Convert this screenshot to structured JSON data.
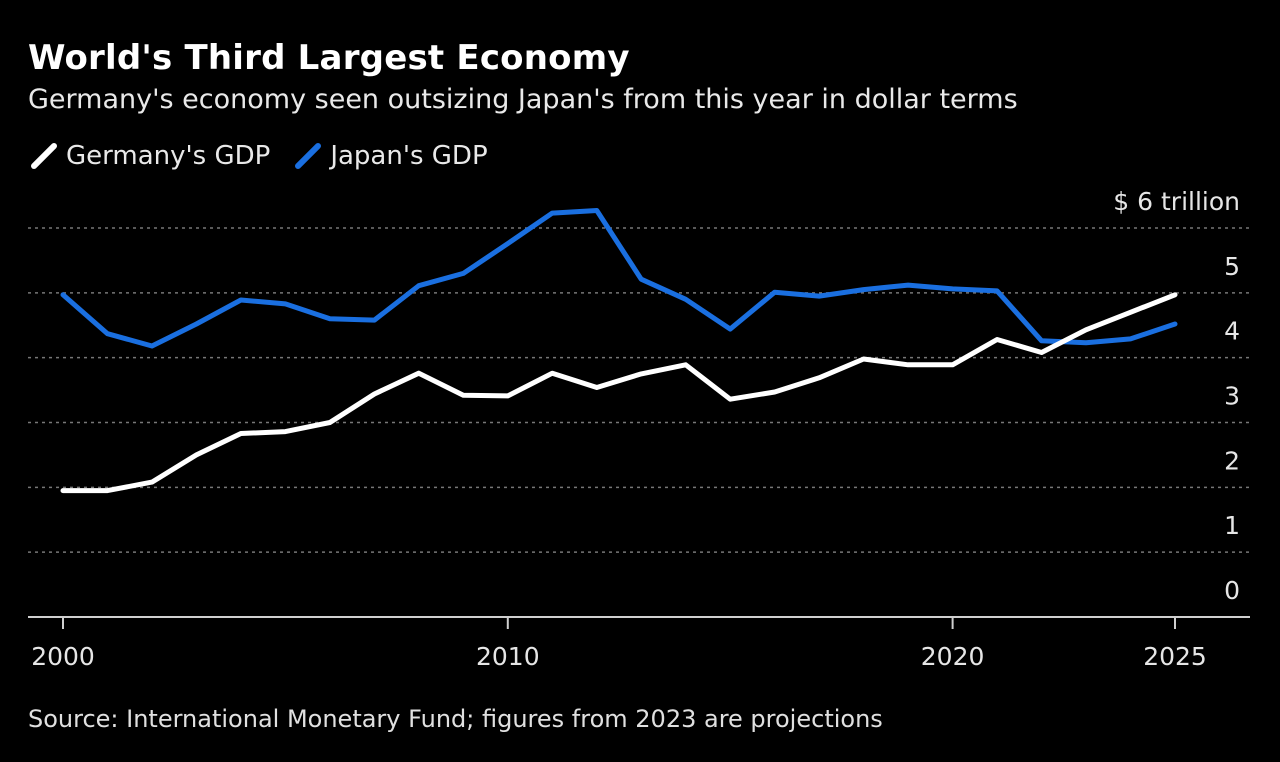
{
  "title": "World's Third Largest Economy",
  "subtitle": "Germany's economy seen outsizing Japan's from this year in dollar terms",
  "source": "Source: International Monetary Fund; figures from 2023 are projections",
  "colors": {
    "germany": "#ffffff",
    "japan": "#1a6fe0",
    "grid": "#777777",
    "axis": "#cfcfcf"
  },
  "chart_data": {
    "type": "line",
    "title": "World's Third Largest Economy",
    "subtitle": "Germany's economy seen outsizing Japan's from this year in dollar terms",
    "xlabel": "",
    "ylabel": "$ trillion",
    "y_unit_label": "$ 6 trillion",
    "ylim": [
      0,
      6
    ],
    "xlim": [
      2000,
      2026.7
    ],
    "y_ticks": [
      0,
      1,
      2,
      3,
      4,
      5,
      6
    ],
    "y_tick_labels": [
      "0",
      "1",
      "2",
      "3",
      "4",
      "5",
      "$ 6 trillion"
    ],
    "x_ticks": [
      2000,
      2010,
      2020,
      2025
    ],
    "x_tick_labels": [
      "2000",
      "2010",
      "2020",
      "2025"
    ],
    "x": [
      2000,
      2001,
      2002,
      2003,
      2004,
      2005,
      2006,
      2007,
      2008,
      2009,
      2010,
      2011,
      2012,
      2013,
      2014,
      2015,
      2016,
      2017,
      2018,
      2019,
      2020,
      2021,
      2022,
      2023,
      2024,
      2025
    ],
    "series": [
      {
        "name": "Germany's GDP",
        "color": "#ffffff",
        "values": [
          1.95,
          1.95,
          2.08,
          2.5,
          2.83,
          2.86,
          3.0,
          3.44,
          3.76,
          3.42,
          3.41,
          3.76,
          3.54,
          3.75,
          3.89,
          3.36,
          3.47,
          3.69,
          3.98,
          3.89,
          3.89,
          4.28,
          4.08,
          4.43,
          4.7,
          4.97
        ]
      },
      {
        "name": "Japan's GDP",
        "color": "#1a6fe0",
        "values": [
          4.97,
          4.37,
          4.18,
          4.52,
          4.89,
          4.83,
          4.6,
          4.58,
          5.11,
          5.3,
          5.76,
          6.23,
          6.27,
          5.21,
          4.9,
          4.44,
          5.01,
          4.95,
          5.05,
          5.12,
          5.06,
          5.03,
          4.26,
          4.23,
          4.29,
          4.52
        ]
      }
    ],
    "legend": [
      "Germany's GDP",
      "Japan's GDP"
    ],
    "legend_position": "top-left",
    "grid": true
  }
}
